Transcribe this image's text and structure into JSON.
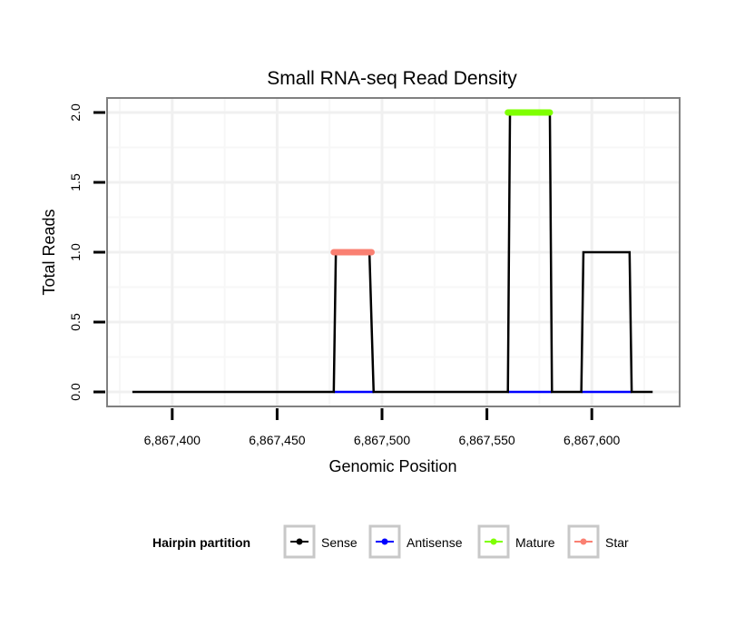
{
  "chart_data": {
    "type": "line",
    "title": "Small RNA-seq Read Density",
    "xlabel": "Genomic Position",
    "ylabel": "Total Reads",
    "xlim": [
      6867370,
      6867640
    ],
    "ylim": [
      -0.1,
      2.1
    ],
    "x_ticks": [
      6867400,
      6867450,
      6867500,
      6867550,
      6867600
    ],
    "x_tick_labels": [
      "6,867,400",
      "6,867,450",
      "6,867,500",
      "6,867,550",
      "6,867,600"
    ],
    "y_ticks": [
      0,
      0.5,
      1,
      1.5,
      2
    ],
    "y_tick_labels": [
      "0.0",
      "0.5",
      "1.0",
      "1.5",
      "2.0"
    ],
    "grid": true,
    "legend": {
      "title": "Hairpin partition",
      "placement": "bottom",
      "entries": [
        "Sense",
        "Antisense",
        "Mature",
        "Star"
      ]
    },
    "series": [
      {
        "name": "Sense",
        "color": "#000000",
        "segments": [
          [
            [
              6867381,
              0
            ],
            [
              6867477,
              0
            ],
            [
              6867478,
              1
            ],
            [
              6867494,
              1
            ],
            [
              6867496,
              0
            ],
            [
              6867560,
              0
            ],
            [
              6867561,
              2
            ],
            [
              6867580,
              2
            ],
            [
              6867581,
              0
            ],
            [
              6867595,
              0
            ],
            [
              6867596,
              1
            ],
            [
              6867618,
              1
            ],
            [
              6867619,
              0
            ],
            [
              6867629,
              0
            ]
          ]
        ]
      },
      {
        "name": "Antisense",
        "color": "#0000ff",
        "segments": [
          [
            [
              6867477,
              0
            ],
            [
              6867496,
              0
            ]
          ],
          [
            [
              6867560,
              0
            ],
            [
              6867581,
              0
            ]
          ],
          [
            [
              6867595,
              0
            ],
            [
              6867619,
              0
            ]
          ]
        ]
      },
      {
        "name": "Mature",
        "color": "#7fff00",
        "segments": [
          [
            [
              6867560,
              2
            ],
            [
              6867580,
              2
            ]
          ]
        ]
      },
      {
        "name": "Star",
        "color": "#fa8072",
        "segments": [
          [
            [
              6867477,
              1
            ],
            [
              6867495,
              1
            ]
          ]
        ]
      }
    ]
  }
}
